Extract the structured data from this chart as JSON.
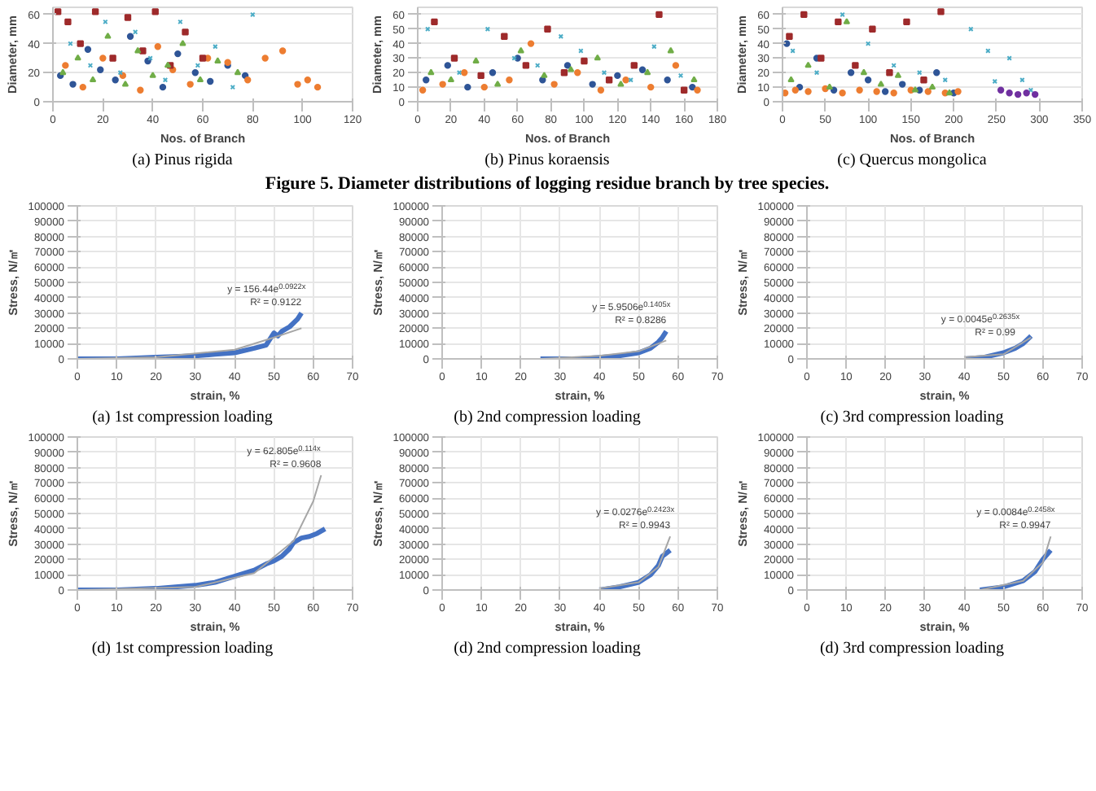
{
  "chart_data": [
    {
      "type": "scatter",
      "xlabel": "Nos. of Branch",
      "ylabel": "Diameter, mm",
      "xlim": [
        0,
        120
      ],
      "xticks": [
        0,
        20,
        40,
        60,
        80,
        100,
        120
      ],
      "ylim": [
        0,
        65
      ],
      "yticks": [
        0,
        20,
        40,
        60
      ],
      "grid": "y",
      "annotations": [
        "(a) Pinus rigida"
      ],
      "series": [
        {
          "color": "#2f5597",
          "marker": "circle",
          "x": [
            3,
            8,
            14,
            19,
            25,
            31,
            38,
            44,
            50,
            57,
            63,
            70,
            77
          ],
          "values": [
            18,
            12,
            36,
            22,
            15,
            45,
            28,
            10,
            33,
            20,
            14,
            25,
            18
          ]
        },
        {
          "color": "#ed7d31",
          "marker": "circle",
          "x": [
            5,
            12,
            20,
            28,
            35,
            42,
            48,
            55,
            62,
            70,
            78,
            85,
            92,
            98,
            102,
            106
          ],
          "values": [
            25,
            10,
            30,
            18,
            8,
            38,
            22,
            12,
            30,
            27,
            15,
            30,
            35,
            12,
            15,
            10
          ]
        },
        {
          "color": "#9e2a2b",
          "marker": "square",
          "x": [
            2,
            6,
            11,
            17,
            24,
            30,
            36,
            41,
            47,
            53,
            60
          ],
          "values": [
            62,
            55,
            40,
            62,
            30,
            58,
            35,
            62,
            25,
            48,
            30
          ]
        },
        {
          "color": "#70ad47",
          "marker": "triangle",
          "x": [
            4,
            10,
            16,
            22,
            29,
            34,
            40,
            46,
            52,
            59,
            66,
            74
          ],
          "values": [
            20,
            30,
            15,
            45,
            12,
            35,
            18,
            25,
            40,
            15,
            28,
            20
          ]
        },
        {
          "color": "#4bacc6",
          "marker": "cross",
          "x": [
            7,
            15,
            21,
            27,
            33,
            39,
            45,
            51,
            58,
            65,
            72,
            80
          ],
          "values": [
            40,
            25,
            55,
            20,
            48,
            30,
            15,
            55,
            25,
            38,
            10,
            60
          ]
        }
      ]
    },
    {
      "type": "scatter",
      "xlabel": "Nos. of Branch",
      "ylabel": "Diameter, mm",
      "xlim": [
        0,
        180
      ],
      "xticks": [
        0,
        20,
        40,
        60,
        80,
        100,
        120,
        140,
        160,
        180
      ],
      "ylim": [
        0,
        65
      ],
      "yticks": [
        0,
        10,
        20,
        30,
        40,
        50,
        60
      ],
      "grid": "y",
      "annotations": [
        "(b) Pinus koraensis",
        "Figure 5. Diameter distributions of logging residue branch by tree species."
      ],
      "series": [
        {
          "color": "#2f5597",
          "marker": "circle",
          "x": [
            5,
            18,
            30,
            45,
            60,
            75,
            90,
            105,
            120,
            135,
            150,
            165
          ],
          "values": [
            15,
            25,
            10,
            20,
            30,
            15,
            25,
            12,
            18,
            22,
            15,
            10
          ]
        },
        {
          "color": "#ed7d31",
          "marker": "circle",
          "x": [
            3,
            15,
            28,
            40,
            55,
            68,
            82,
            96,
            110,
            125,
            140,
            155,
            168
          ],
          "values": [
            8,
            12,
            20,
            10,
            15,
            40,
            12,
            20,
            8,
            15,
            10,
            25,
            8
          ]
        },
        {
          "color": "#9e2a2b",
          "marker": "square",
          "x": [
            10,
            22,
            38,
            52,
            65,
            78,
            88,
            100,
            115,
            130,
            145,
            160
          ],
          "values": [
            55,
            30,
            18,
            45,
            25,
            50,
            20,
            28,
            15,
            25,
            60,
            8
          ]
        },
        {
          "color": "#70ad47",
          "marker": "triangle",
          "x": [
            8,
            20,
            35,
            48,
            62,
            76,
            92,
            108,
            122,
            138,
            152,
            166
          ],
          "values": [
            20,
            15,
            28,
            12,
            35,
            18,
            22,
            30,
            12,
            20,
            35,
            15
          ]
        },
        {
          "color": "#4bacc6",
          "marker": "cross",
          "x": [
            6,
            25,
            42,
            58,
            72,
            86,
            98,
            112,
            128,
            142,
            158
          ],
          "values": [
            50,
            20,
            50,
            30,
            25,
            45,
            35,
            20,
            15,
            38,
            18
          ]
        }
      ]
    },
    {
      "type": "scatter",
      "xlabel": "Nos. of Branch",
      "ylabel": "Diameter, mm",
      "xlim": [
        0,
        350
      ],
      "xticks": [
        0,
        50,
        100,
        150,
        200,
        250,
        300,
        350
      ],
      "ylim": [
        0,
        65
      ],
      "yticks": [
        0,
        10,
        20,
        30,
        40,
        50,
        60
      ],
      "grid": "y",
      "annotations": [
        "(c) Quercus mongolica"
      ],
      "series": [
        {
          "color": "#2f5597",
          "marker": "circle",
          "x": [
            5,
            20,
            40,
            60,
            80,
            100,
            120,
            140,
            160,
            180,
            200
          ],
          "values": [
            40,
            10,
            30,
            8,
            20,
            15,
            7,
            12,
            8,
            20,
            6
          ]
        },
        {
          "color": "#ed7d31",
          "marker": "circle",
          "x": [
            3,
            15,
            30,
            50,
            70,
            90,
            110,
            130,
            150,
            170,
            190,
            205
          ],
          "values": [
            6,
            8,
            7,
            9,
            6,
            8,
            7,
            6,
            8,
            7,
            6,
            7
          ]
        },
        {
          "color": "#9e2a2b",
          "marker": "square",
          "x": [
            8,
            25,
            45,
            65,
            85,
            105,
            125,
            145,
            165,
            185
          ],
          "values": [
            45,
            60,
            30,
            55,
            25,
            50,
            20,
            55,
            15,
            62
          ]
        },
        {
          "color": "#70ad47",
          "marker": "triangle",
          "x": [
            10,
            30,
            55,
            75,
            95,
            115,
            135,
            155,
            175,
            195
          ],
          "values": [
            15,
            25,
            10,
            55,
            20,
            12,
            18,
            8,
            10,
            6
          ]
        },
        {
          "color": "#4bacc6",
          "marker": "cross",
          "x": [
            12,
            40,
            70,
            100,
            130,
            160,
            190,
            220,
            240,
            248,
            265,
            280,
            290
          ],
          "values": [
            35,
            20,
            60,
            40,
            25,
            20,
            15,
            50,
            35,
            14,
            30,
            15,
            8
          ]
        },
        {
          "color": "#7030a0",
          "marker": "circle",
          "x": [
            255,
            265,
            275,
            285,
            295
          ],
          "values": [
            8,
            6,
            5,
            6,
            5
          ]
        }
      ]
    },
    {
      "type": "line",
      "xlabel": "strain, %",
      "ylabel": "Stress, N/㎡",
      "xlim": [
        0,
        70
      ],
      "xticks": [
        0,
        10,
        20,
        30,
        40,
        50,
        60,
        70
      ],
      "ylim": [
        0,
        100000
      ],
      "yticks": [
        0,
        10000,
        20000,
        30000,
        40000,
        50000,
        60000,
        70000,
        80000,
        90000,
        100000
      ],
      "grid": true,
      "annotations": [
        "(a) 1st compression loading",
        {
          "text": "y = 156.44e$^{0.0922x}$\nR² = 0.9122",
          "x": 57,
          "y": 30000
        }
      ],
      "series": [
        {
          "color": "#4472c4",
          "x": [
            0,
            10,
            20,
            30,
            35,
            40,
            45,
            48,
            49,
            50,
            51,
            52,
            54,
            56,
            57
          ],
          "values": [
            0,
            0,
            1000,
            2000,
            3000,
            4000,
            7000,
            9000,
            13000,
            17000,
            15000,
            18000,
            21000,
            26000,
            30000
          ]
        },
        {
          "color": "#a6a6a6",
          "x": [
            0,
            20,
            40,
            50,
            57
          ],
          "values": [
            0,
            1000,
            6000,
            14000,
            20000
          ]
        }
      ]
    },
    {
      "type": "line",
      "xlabel": "strain, %",
      "ylabel": "Stress, N/㎡",
      "xlim": [
        0,
        70
      ],
      "xticks": [
        0,
        10,
        20,
        30,
        40,
        50,
        60,
        70
      ],
      "ylim": [
        0,
        100000
      ],
      "yticks": [
        0,
        10000,
        20000,
        30000,
        40000,
        50000,
        60000,
        70000,
        80000,
        90000,
        100000
      ],
      "grid": true,
      "annotations": [
        "(b) 2nd compression loading",
        {
          "text": "y = 5.9506e$^{0.1405x}$\nR² = 0.8286",
          "x": 57,
          "y": 18000
        }
      ],
      "series": [
        {
          "color": "#4472c4",
          "x": [
            25,
            30,
            35,
            40,
            45,
            50,
            53,
            55,
            56,
            57
          ],
          "values": [
            0,
            0,
            0,
            1000,
            2000,
            4000,
            7000,
            11000,
            14000,
            18000
          ]
        },
        {
          "color": "#a6a6a6",
          "x": [
            25,
            40,
            50,
            57
          ],
          "values": [
            0,
            2000,
            5000,
            12000
          ]
        }
      ]
    },
    {
      "type": "line",
      "xlabel": "strain, %",
      "ylabel": "Stress, N/㎡",
      "xlim": [
        0,
        70
      ],
      "xticks": [
        0,
        10,
        20,
        30,
        40,
        50,
        60,
        70
      ],
      "ylim": [
        0,
        100000
      ],
      "yticks": [
        0,
        10000,
        20000,
        30000,
        40000,
        50000,
        60000,
        70000,
        80000,
        90000,
        100000
      ],
      "grid": true,
      "annotations": [
        "(c) 3rd compression loading",
        {
          "text": "y = 0.0045e$^{0.2635x}$\nR² = 0.99",
          "x": 53,
          "y": 10000
        }
      ],
      "series": [
        {
          "color": "#4472c4",
          "x": [
            40,
            45,
            50,
            53,
            55,
            57
          ],
          "values": [
            0,
            1000,
            4000,
            7000,
            10000,
            15000
          ]
        },
        {
          "color": "#a6a6a6",
          "x": [
            40,
            50,
            57
          ],
          "values": [
            1000,
            3000,
            14000
          ]
        }
      ]
    },
    {
      "type": "line",
      "xlabel": "strain, %",
      "ylabel": "Stress, N/㎡",
      "xlim": [
        0,
        70
      ],
      "xticks": [
        0,
        10,
        20,
        30,
        40,
        50,
        60,
        70
      ],
      "ylim": [
        0,
        100000
      ],
      "yticks": [
        0,
        10000,
        20000,
        30000,
        40000,
        50000,
        60000,
        70000,
        80000,
        90000,
        100000
      ],
      "grid": true,
      "annotations": [
        "(d) 1st compression loading",
        {
          "text": "y = 62.805e$^{0.114x}$\nR² = 0.9608",
          "x": 62,
          "y": 75000
        }
      ],
      "series": [
        {
          "color": "#4472c4",
          "x": [
            0,
            10,
            20,
            30,
            35,
            40,
            45,
            48,
            50,
            52,
            54,
            55,
            57,
            59,
            61,
            63
          ],
          "values": [
            0,
            0,
            1000,
            3000,
            5000,
            9000,
            13000,
            17000,
            19000,
            22000,
            27000,
            31000,
            34000,
            35000,
            37000,
            40000
          ]
        },
        {
          "color": "#a6a6a6",
          "x": [
            0,
            30,
            45,
            55,
            60,
            62
          ],
          "values": [
            0,
            2000,
            11000,
            32000,
            58000,
            75000
          ]
        }
      ]
    },
    {
      "type": "line",
      "xlabel": "strain, %",
      "ylabel": "Stress, N/㎡",
      "xlim": [
        0,
        70
      ],
      "xticks": [
        0,
        10,
        20,
        30,
        40,
        50,
        60,
        70
      ],
      "ylim": [
        0,
        100000
      ],
      "yticks": [
        0,
        10000,
        20000,
        30000,
        40000,
        50000,
        60000,
        70000,
        80000,
        90000,
        100000
      ],
      "grid": true,
      "annotations": [
        "(d) 2nd compression loading",
        {
          "text": "y = 0.0276e$^{0.2423x}$\nR² = 0.9943",
          "x": 58,
          "y": 35000
        }
      ],
      "series": [
        {
          "color": "#4472c4",
          "x": [
            40,
            45,
            50,
            53,
            55,
            56,
            57,
            58
          ],
          "values": [
            0,
            2000,
            5000,
            10000,
            16000,
            22000,
            24000,
            26000
          ]
        },
        {
          "color": "#a6a6a6",
          "x": [
            40,
            50,
            55,
            58
          ],
          "values": [
            1000,
            5000,
            15000,
            35000
          ]
        }
      ]
    },
    {
      "type": "line",
      "xlabel": "strain, %",
      "ylabel": "Stress, N/㎡",
      "xlim": [
        0,
        70
      ],
      "xticks": [
        0,
        10,
        20,
        30,
        40,
        50,
        60,
        70
      ],
      "ylim": [
        0,
        100000
      ],
      "yticks": [
        0,
        10000,
        20000,
        30000,
        40000,
        50000,
        60000,
        70000,
        80000,
        90000,
        100000
      ],
      "grid": true,
      "annotations": [
        "(d) 3rd compression loading",
        {
          "text": "y = 0.0084e$^{0.2458x}$\nR² = 0.9947",
          "x": 62,
          "y": 35000
        }
      ],
      "series": [
        {
          "color": "#4472c4",
          "x": [
            44,
            50,
            55,
            58,
            60,
            61,
            62
          ],
          "values": [
            0,
            2000,
            6000,
            12000,
            20000,
            23000,
            26000
          ]
        },
        {
          "color": "#a6a6a6",
          "x": [
            44,
            55,
            60,
            62
          ],
          "values": [
            0,
            6000,
            18000,
            35000
          ]
        }
      ]
    }
  ]
}
